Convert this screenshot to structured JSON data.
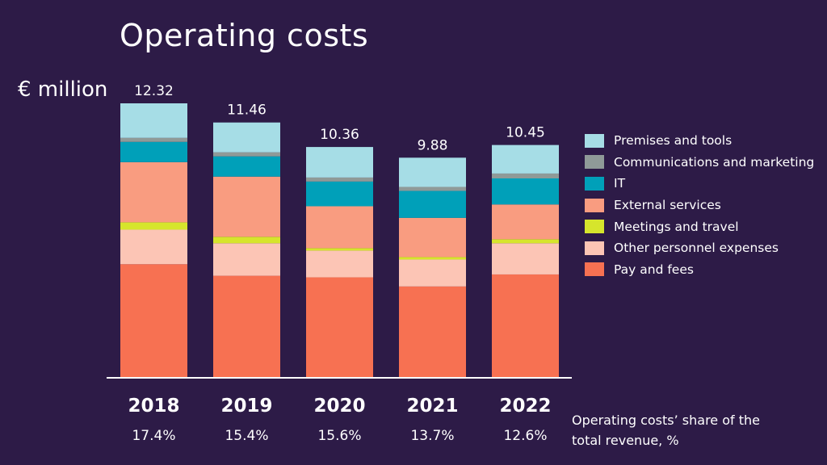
{
  "title": "Operating costs",
  "unit_label": "€ million",
  "share_note": "Operating costs’ share of the total revenue, %",
  "chart_data": {
    "type": "bar",
    "stacked": true,
    "title": "Operating costs",
    "ylabel": "€ million",
    "ylim": [
      0,
      12.32
    ],
    "categories": [
      "2018",
      "2019",
      "2020",
      "2021",
      "2022"
    ],
    "totals": [
      "12.32",
      "11.46",
      "10.36",
      "9.88",
      "10.45"
    ],
    "share_of_revenue": [
      "17.4%",
      "15.4%",
      "15.6%",
      "13.7%",
      "12.6%"
    ],
    "series": [
      {
        "name": "Pay and fees",
        "color": "#f77152",
        "values": [
          5.1,
          4.58,
          4.51,
          4.1,
          4.64
        ]
      },
      {
        "name": "Other personnel expenses",
        "color": "#fcc5b5",
        "values": [
          1.55,
          1.46,
          1.2,
          1.21,
          1.4
        ]
      },
      {
        "name": "Meetings and travel",
        "color": "#d6e52c",
        "values": [
          0.33,
          0.29,
          0.11,
          0.11,
          0.18
        ]
      },
      {
        "name": "External services",
        "color": "#f99c80",
        "values": [
          2.7,
          2.7,
          1.88,
          1.76,
          1.56
        ]
      },
      {
        "name": "IT",
        "color": "#00a0b9",
        "values": [
          0.91,
          0.91,
          1.11,
          1.21,
          1.17
        ]
      },
      {
        "name": "Communications and marketing",
        "color": "#8f9a98",
        "values": [
          0.18,
          0.18,
          0.18,
          0.18,
          0.22
        ]
      },
      {
        "name": "Premises and tools",
        "color": "#a6dde6",
        "values": [
          1.55,
          1.34,
          1.37,
          1.31,
          1.28
        ]
      }
    ],
    "grid": false,
    "legend_position": "right"
  }
}
